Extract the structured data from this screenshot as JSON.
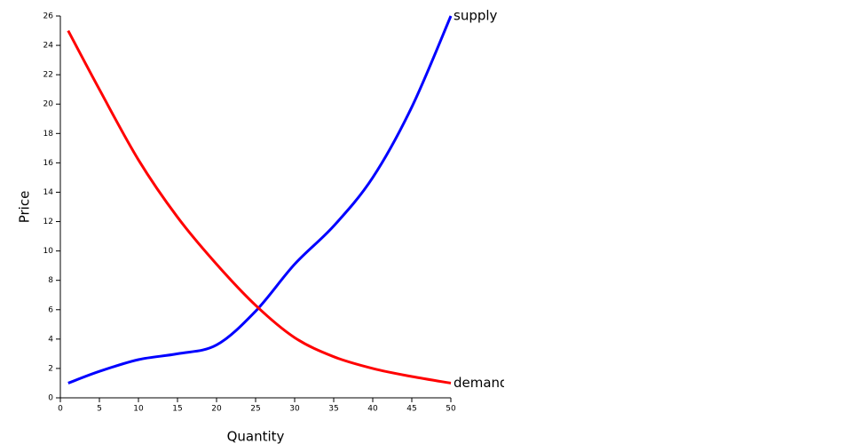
{
  "chart_data": {
    "type": "line",
    "x_label": "Quantity",
    "y_label": "Price",
    "x": [
      1,
      5,
      10,
      15,
      20,
      25,
      30,
      35,
      40,
      45,
      50
    ],
    "series": [
      {
        "name": "supply",
        "color": "blue",
        "values": [
          1,
          1.8,
          2.6,
          3.0,
          3.6,
          5.9,
          9.1,
          11.7,
          15,
          19.8,
          26
        ]
      },
      {
        "name": "demand",
        "color": "red",
        "values": [
          25,
          21,
          16.2,
          12.3,
          9.1,
          6.3,
          4.1,
          2.8,
          2.0,
          1.45,
          1
        ]
      }
    ],
    "xlim": [
      0,
      50
    ],
    "xticks": [
      0,
      5,
      10,
      15,
      20,
      25,
      30,
      35,
      40,
      45,
      50
    ],
    "ylim": [
      0,
      26
    ],
    "yticks": [
      0,
      2,
      4,
      6,
      8,
      10,
      12,
      14,
      16,
      18,
      20,
      22,
      24,
      26
    ]
  }
}
